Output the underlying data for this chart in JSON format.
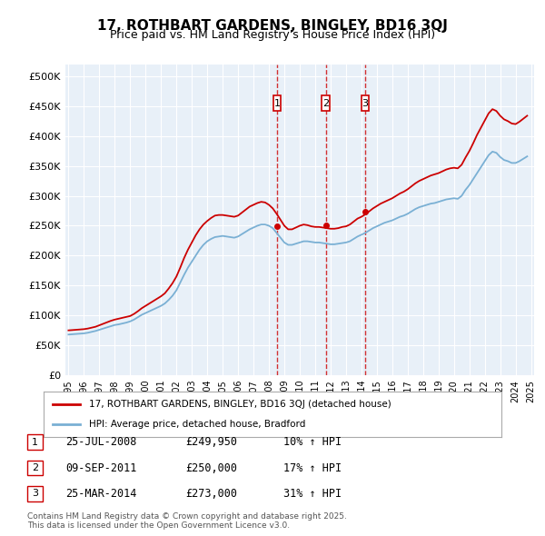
{
  "title": "17, ROTHBART GARDENS, BINGLEY, BD16 3QJ",
  "subtitle": "Price paid vs. HM Land Registry's House Price Index (HPI)",
  "ylabel": "",
  "background_color": "#ffffff",
  "plot_bg_color": "#e8f0f8",
  "grid_color": "#ffffff",
  "red_color": "#cc0000",
  "blue_color": "#7ab0d4",
  "ylim": [
    0,
    520000
  ],
  "yticks": [
    0,
    50000,
    100000,
    150000,
    200000,
    250000,
    300000,
    350000,
    400000,
    450000,
    500000
  ],
  "ytick_labels": [
    "£0",
    "£50K",
    "£100K",
    "£150K",
    "£200K",
    "£250K",
    "£300K",
    "£350K",
    "£400K",
    "£450K",
    "£500K"
  ],
  "sale_dates": [
    "2008-07-25",
    "2011-09-09",
    "2014-03-25"
  ],
  "sale_prices": [
    249950,
    250000,
    273000
  ],
  "sale_labels": [
    "1",
    "2",
    "3"
  ],
  "transaction_info": [
    {
      "label": "1",
      "date": "25-JUL-2008",
      "price": "£249,950",
      "hpi": "10% ↑ HPI"
    },
    {
      "label": "2",
      "date": "09-SEP-2011",
      "price": "£250,000",
      "hpi": "17% ↑ HPI"
    },
    {
      "label": "3",
      "date": "25-MAR-2014",
      "price": "£273,000",
      "hpi": "31% ↑ HPI"
    }
  ],
  "legend_line1": "17, ROTHBART GARDENS, BINGLEY, BD16 3QJ (detached house)",
  "legend_line2": "HPI: Average price, detached house, Bradford",
  "footer": "Contains HM Land Registry data © Crown copyright and database right 2025.\nThis data is licensed under the Open Government Licence v3.0.",
  "hpi_data": {
    "dates": [
      1995.0,
      1995.25,
      1995.5,
      1995.75,
      1996.0,
      1996.25,
      1996.5,
      1996.75,
      1997.0,
      1997.25,
      1997.5,
      1997.75,
      1998.0,
      1998.25,
      1998.5,
      1998.75,
      1999.0,
      1999.25,
      1999.5,
      1999.75,
      2000.0,
      2000.25,
      2000.5,
      2000.75,
      2001.0,
      2001.25,
      2001.5,
      2001.75,
      2002.0,
      2002.25,
      2002.5,
      2002.75,
      2003.0,
      2003.25,
      2003.5,
      2003.75,
      2004.0,
      2004.25,
      2004.5,
      2004.75,
      2005.0,
      2005.25,
      2005.5,
      2005.75,
      2006.0,
      2006.25,
      2006.5,
      2006.75,
      2007.0,
      2007.25,
      2007.5,
      2007.75,
      2008.0,
      2008.25,
      2008.5,
      2008.75,
      2009.0,
      2009.25,
      2009.5,
      2009.75,
      2010.0,
      2010.25,
      2010.5,
      2010.75,
      2011.0,
      2011.25,
      2011.5,
      2011.75,
      2012.0,
      2012.25,
      2012.5,
      2012.75,
      2013.0,
      2013.25,
      2013.5,
      2013.75,
      2014.0,
      2014.25,
      2014.5,
      2014.75,
      2015.0,
      2015.25,
      2015.5,
      2015.75,
      2016.0,
      2016.25,
      2016.5,
      2016.75,
      2017.0,
      2017.25,
      2017.5,
      2017.75,
      2018.0,
      2018.25,
      2018.5,
      2018.75,
      2019.0,
      2019.25,
      2019.5,
      2019.75,
      2020.0,
      2020.25,
      2020.5,
      2020.75,
      2021.0,
      2021.25,
      2021.5,
      2021.75,
      2022.0,
      2022.25,
      2022.5,
      2022.75,
      2023.0,
      2023.25,
      2023.5,
      2023.75,
      2024.0,
      2024.25,
      2024.5,
      2024.75
    ],
    "hpi_values": [
      68000,
      68500,
      69000,
      69500,
      70000,
      71000,
      72500,
      74000,
      76000,
      78000,
      80000,
      82000,
      84000,
      85000,
      86500,
      88000,
      90000,
      93000,
      97000,
      101000,
      104000,
      107000,
      110000,
      113000,
      116000,
      120000,
      126000,
      133000,
      142000,
      155000,
      168000,
      180000,
      190000,
      200000,
      210000,
      218000,
      224000,
      228000,
      231000,
      232000,
      233000,
      232000,
      231000,
      230000,
      232000,
      236000,
      240000,
      244000,
      247000,
      250000,
      252000,
      252000,
      250000,
      246000,
      238000,
      230000,
      222000,
      218000,
      218000,
      220000,
      222000,
      224000,
      224000,
      223000,
      222000,
      222000,
      221000,
      220000,
      219000,
      219000,
      220000,
      221000,
      222000,
      224000,
      228000,
      232000,
      235000,
      238000,
      242000,
      246000,
      249000,
      252000,
      255000,
      257000,
      259000,
      262000,
      265000,
      267000,
      270000,
      274000,
      278000,
      281000,
      283000,
      285000,
      287000,
      288000,
      290000,
      292000,
      294000,
      295000,
      296000,
      295000,
      300000,
      310000,
      318000,
      328000,
      338000,
      348000,
      358000,
      368000,
      374000,
      372000,
      365000,
      360000,
      358000,
      355000,
      355000,
      358000,
      362000,
      366000
    ],
    "price_values": [
      75000,
      75500,
      76000,
      76500,
      77000,
      78000,
      79500,
      81000,
      83500,
      86000,
      88500,
      91000,
      93000,
      94500,
      96000,
      97500,
      99000,
      102500,
      107000,
      112000,
      116000,
      120000,
      124000,
      128000,
      132000,
      137000,
      145000,
      154000,
      165000,
      180000,
      196000,
      210000,
      222000,
      234000,
      244000,
      252000,
      258000,
      263000,
      267000,
      268000,
      268000,
      267000,
      266000,
      265000,
      267000,
      272000,
      277000,
      282000,
      285000,
      288000,
      290000,
      289000,
      285000,
      279000,
      270000,
      260000,
      250000,
      244000,
      244000,
      247000,
      250000,
      252000,
      251000,
      249000,
      248000,
      248000,
      247000,
      246000,
      245000,
      245000,
      246000,
      248000,
      249000,
      252000,
      257000,
      262000,
      265000,
      269000,
      274000,
      279000,
      283000,
      287000,
      290000,
      293000,
      296000,
      300000,
      304000,
      307000,
      311000,
      316000,
      321000,
      325000,
      328000,
      331000,
      334000,
      336000,
      338000,
      341000,
      344000,
      346000,
      347000,
      346000,
      352000,
      364000,
      375000,
      388000,
      402000,
      414000,
      426000,
      438000,
      445000,
      442000,
      434000,
      428000,
      425000,
      421000,
      420000,
      424000,
      429000,
      434000
    ]
  }
}
